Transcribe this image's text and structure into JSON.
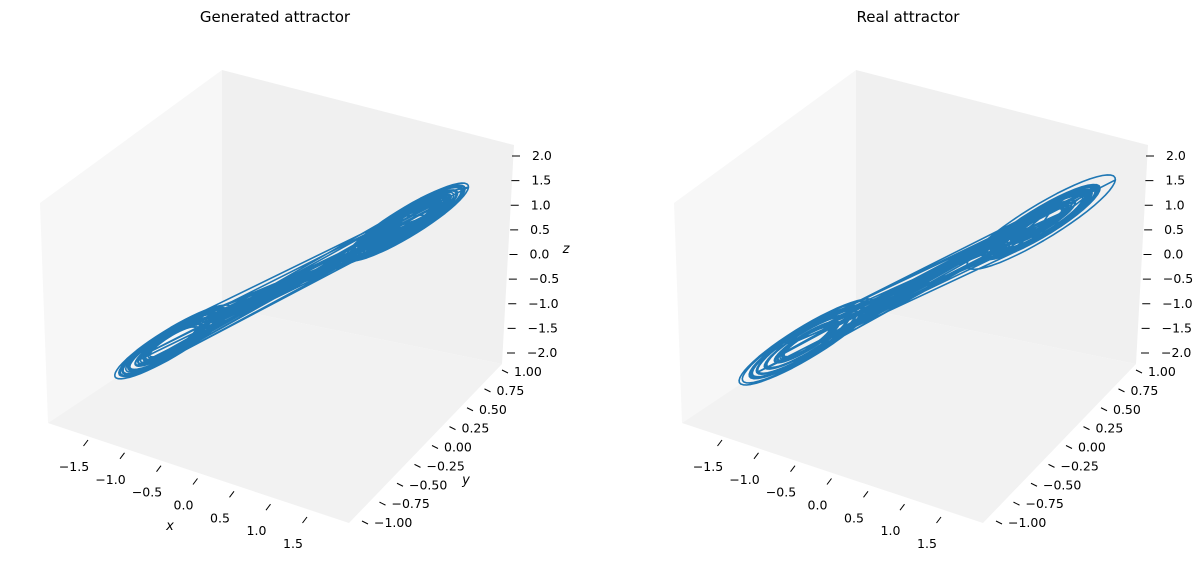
{
  "chart_data": [
    {
      "type": "line3d",
      "title": "Generated attractor",
      "xlabel": "x",
      "ylabel": "y",
      "zlabel": "z",
      "xlim": [
        -2.0,
        2.0
      ],
      "ylim": [
        -1.05,
        1.05
      ],
      "zlim": [
        -2.2,
        2.2
      ],
      "xticks": [
        "−1.5",
        "−1.0",
        "−0.5",
        "0.0",
        "0.5",
        "1.0",
        "1.5"
      ],
      "yticks": [
        "−1.00",
        "−0.75",
        "−0.50",
        "−0.25",
        "0.00",
        "0.25",
        "0.50",
        "0.75",
        "1.00"
      ],
      "zticks": [
        "−2.0",
        "−1.5",
        "−1.0",
        "−0.5",
        "0.0",
        "0.5",
        "1.0",
        "1.5",
        "2.0"
      ],
      "series_color": "#1f77b4",
      "trajectory": {
        "shape": "two-lobed (butterfly) attractor",
        "lobe_centers": [
          [
            -1.1,
            -0.35,
            -1.15
          ],
          [
            1.1,
            0.35,
            1.15
          ]
        ],
        "x_range": [
          -1.75,
          1.75
        ],
        "z_range": [
          -1.95,
          2.0
        ]
      }
    },
    {
      "type": "line3d",
      "title": "Real attractor",
      "xlabel": "",
      "ylabel": "",
      "zlabel": "",
      "xlim": [
        -2.0,
        2.0
      ],
      "ylim": [
        -1.05,
        1.05
      ],
      "zlim": [
        -2.2,
        2.2
      ],
      "xticks": [
        "−1.5",
        "−1.0",
        "−0.5",
        "0.0",
        "0.5",
        "1.0",
        "1.5"
      ],
      "yticks": [
        "−1.00",
        "−0.75",
        "−0.50",
        "−0.25",
        "0.00",
        "0.25",
        "0.50",
        "0.75",
        "1.00"
      ],
      "zticks": [
        "−2.0",
        "−1.5",
        "−1.0",
        "−0.5",
        "0.0",
        "0.5",
        "1.0",
        "1.5",
        "2.0"
      ],
      "series_color": "#1f77b4",
      "trajectory": {
        "shape": "two-lobed (butterfly) attractor",
        "lobe_centers": [
          [
            -1.1,
            -0.35,
            -1.15
          ],
          [
            1.1,
            0.35,
            1.15
          ]
        ],
        "x_range": [
          -1.85,
          1.85
        ],
        "z_range": [
          -2.0,
          2.05
        ]
      }
    }
  ]
}
